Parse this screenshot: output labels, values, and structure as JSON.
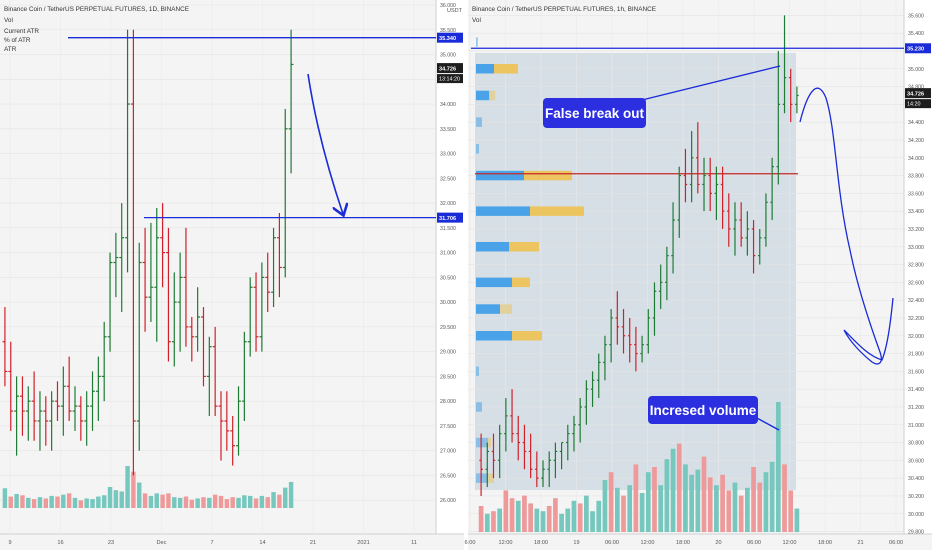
{
  "colors": {
    "bull": "#1e7b34",
    "bear": "#d0202a",
    "vol_bull": "#76c7bd",
    "vol_bear": "#ef9a9a",
    "annot_blue": "#1a2bd8",
    "vp_blue": "#4aa3e8",
    "vp_yellow": "#ecc560",
    "panel_bg": "#f4f4f4",
    "profile_bg": "#d6dfe6",
    "resistance_red": "#c62828"
  },
  "chart_data": [
    {
      "type": "candlestick",
      "title": "Binance Coin / TetherUS PERPETUAL FUTURES, 1D, BINANCE",
      "indicator_labels": [
        "Vol",
        "Current ATR",
        "% of ATR",
        "ATR"
      ],
      "currency": "USDT",
      "ylim": [
        25.6,
        36.0
      ],
      "y_ticks": [
        "26.000",
        "26.500",
        "27.000",
        "27.500",
        "28.000",
        "28.500",
        "29.000",
        "29.500",
        "30.000",
        "30.500",
        "31.000",
        "31.500",
        "32.000",
        "32.500",
        "33.000",
        "33.500",
        "34.000",
        "34.500",
        "35.000",
        "35.500",
        "36.000"
      ],
      "x_ticks": [
        "9",
        "16",
        "23",
        "Dec",
        "7",
        "14",
        "21",
        "2021",
        "11"
      ],
      "price_labels": [
        {
          "value": 35.34,
          "text": "35.340"
        },
        {
          "value": 34.726,
          "text": "34.726"
        },
        {
          "value": 31.706,
          "text": "31.706"
        }
      ],
      "countdown": "13:14:20",
      "horizontal_lines": [
        35.34,
        31.706
      ],
      "candles": [
        [
          29.2,
          29.9,
          28.3,
          28.6
        ],
        [
          28.6,
          29.2,
          27.4,
          27.8
        ],
        [
          27.8,
          28.5,
          26.9,
          28.1
        ],
        [
          28.1,
          28.5,
          27.3,
          27.8
        ],
        [
          27.8,
          28.3,
          27.2,
          28.0
        ],
        [
          28.0,
          28.6,
          27.2,
          27.6
        ],
        [
          27.6,
          28.2,
          27.0,
          27.8
        ],
        [
          27.8,
          28.1,
          27.1,
          27.6
        ],
        [
          27.6,
          28.2,
          27.0,
          28.0
        ],
        [
          28.0,
          28.4,
          27.6,
          27.9
        ],
        [
          27.9,
          28.7,
          27.3,
          28.3
        ],
        [
          28.3,
          28.9,
          27.6,
          27.8
        ],
        [
          27.8,
          28.3,
          27.4,
          27.9
        ],
        [
          27.9,
          28.1,
          27.2,
          27.6
        ],
        [
          27.6,
          28.2,
          27.1,
          27.9
        ],
        [
          27.9,
          28.6,
          27.4,
          28.2
        ],
        [
          28.2,
          28.9,
          27.6,
          28.5
        ],
        [
          28.5,
          29.6,
          28.0,
          29.3
        ],
        [
          29.3,
          31.0,
          29.0,
          30.8
        ],
        [
          30.8,
          31.4,
          30.1,
          30.9
        ],
        [
          30.9,
          32.0,
          29.8,
          31.3
        ],
        [
          31.3,
          35.5,
          30.6,
          34.0
        ],
        [
          34.0,
          35.5,
          26.5,
          27.6
        ],
        [
          27.6,
          31.2,
          27.0,
          30.8
        ],
        [
          30.8,
          31.5,
          29.4,
          30.1
        ],
        [
          30.1,
          31.6,
          29.6,
          30.3
        ],
        [
          30.3,
          31.9,
          29.2,
          31.3
        ],
        [
          31.3,
          32.0,
          30.3,
          31.0
        ],
        [
          31.0,
          31.5,
          28.8,
          29.2
        ],
        [
          29.2,
          30.6,
          28.7,
          30.0
        ],
        [
          30.0,
          31.0,
          29.0,
          30.5
        ],
        [
          30.5,
          31.5,
          29.1,
          29.5
        ],
        [
          29.5,
          29.7,
          28.8,
          29.3
        ],
        [
          29.3,
          30.3,
          29.0,
          29.7
        ],
        [
          29.7,
          29.9,
          28.3,
          28.5
        ],
        [
          28.5,
          29.3,
          27.7,
          29.1
        ],
        [
          29.1,
          29.5,
          27.7,
          27.9
        ],
        [
          27.9,
          28.2,
          26.8,
          27.6
        ],
        [
          27.6,
          28.2,
          27.0,
          27.4
        ],
        [
          27.4,
          27.7,
          26.7,
          27.1
        ],
        [
          27.1,
          28.3,
          26.9,
          28.0
        ],
        [
          28.0,
          29.4,
          27.6,
          29.2
        ],
        [
          29.2,
          30.5,
          28.9,
          30.3
        ],
        [
          30.3,
          30.6,
          29.0,
          29.3
        ],
        [
          29.3,
          30.8,
          29.0,
          30.5
        ],
        [
          30.5,
          31.0,
          29.8,
          30.2
        ],
        [
          30.2,
          31.5,
          29.9,
          31.3
        ],
        [
          31.3,
          31.8,
          30.1,
          30.7
        ],
        [
          30.7,
          33.9,
          30.5,
          33.5
        ],
        [
          33.5,
          35.5,
          32.6,
          34.8
        ]
      ],
      "volumes": [
        [
          3.1,
          "bull"
        ],
        [
          1.8,
          "bear"
        ],
        [
          2.2,
          "bull"
        ],
        [
          2.0,
          "bear"
        ],
        [
          1.6,
          "bull"
        ],
        [
          1.4,
          "bear"
        ],
        [
          1.7,
          "bull"
        ],
        [
          1.5,
          "bear"
        ],
        [
          1.9,
          "bull"
        ],
        [
          1.8,
          "bear"
        ],
        [
          2.1,
          "bull"
        ],
        [
          2.3,
          "bear"
        ],
        [
          1.6,
          "bull"
        ],
        [
          1.2,
          "bear"
        ],
        [
          1.5,
          "bull"
        ],
        [
          1.4,
          "bull"
        ],
        [
          1.8,
          "bull"
        ],
        [
          2.0,
          "bull"
        ],
        [
          3.3,
          "bull"
        ],
        [
          2.8,
          "bull"
        ],
        [
          2.6,
          "bull"
        ],
        [
          6.6,
          "bull"
        ],
        [
          5.7,
          "bear"
        ],
        [
          4.0,
          "bull"
        ],
        [
          2.3,
          "bear"
        ],
        [
          1.9,
          "bull"
        ],
        [
          2.3,
          "bull"
        ],
        [
          2.1,
          "bear"
        ],
        [
          2.3,
          "bear"
        ],
        [
          1.7,
          "bull"
        ],
        [
          1.6,
          "bull"
        ],
        [
          1.8,
          "bear"
        ],
        [
          1.3,
          "bear"
        ],
        [
          1.5,
          "bull"
        ],
        [
          1.7,
          "bear"
        ],
        [
          1.6,
          "bull"
        ],
        [
          2.1,
          "bear"
        ],
        [
          1.9,
          "bear"
        ],
        [
          1.4,
          "bear"
        ],
        [
          1.7,
          "bear"
        ],
        [
          1.6,
          "bull"
        ],
        [
          2.0,
          "bull"
        ],
        [
          1.9,
          "bull"
        ],
        [
          1.5,
          "bear"
        ],
        [
          1.9,
          "bull"
        ],
        [
          1.7,
          "bear"
        ],
        [
          2.5,
          "bull"
        ],
        [
          2.1,
          "bear"
        ],
        [
          3.2,
          "bull"
        ],
        [
          4.1,
          "bull"
        ]
      ]
    },
    {
      "type": "candlestick",
      "title": "Binance Coin / TetherUS PERPETUAL FUTURES, 1h, BINANCE",
      "indicator_labels": [
        "Vol"
      ],
      "ylim": [
        29.75,
        35.75
      ],
      "y_ticks": [
        "29.800",
        "30.000",
        "30.200",
        "30.400",
        "30.600",
        "30.800",
        "31.000",
        "31.200",
        "31.400",
        "31.600",
        "31.800",
        "32.000",
        "32.200",
        "32.400",
        "32.600",
        "32.800",
        "33.000",
        "33.200",
        "33.400",
        "33.600",
        "33.800",
        "34.000",
        "34.200",
        "34.400",
        "34.600",
        "34.800",
        "35.000",
        "35.200",
        "35.400",
        "35.600"
      ],
      "x_ticks": [
        "6:00",
        "12:00",
        "18:00",
        "19",
        "06:00",
        "12:00",
        "18:00",
        "20",
        "06:00",
        "12:00",
        "18:00",
        "21",
        "06:00"
      ],
      "price_labels": [
        {
          "value": 35.23,
          "text": "35.230"
        },
        {
          "value": 34.726,
          "text": "34.726"
        }
      ],
      "countdown": "14:20",
      "horizontal_lines": [
        35.23
      ],
      "point_of_control": 33.82,
      "annotations": [
        "False break out",
        "Incresed volume"
      ],
      "volume_profile": [
        {
          "price": 35.3,
          "up": 0.3,
          "down": 0.0
        },
        {
          "price": 35.0,
          "up": 3.0,
          "down": 4.0
        },
        {
          "price": 34.7,
          "up": 2.2,
          "down": 1.0
        },
        {
          "price": 34.4,
          "up": 1.0,
          "down": 0.0
        },
        {
          "price": 34.1,
          "up": 0.5,
          "down": 0.0
        },
        {
          "price": 33.8,
          "up": 8.0,
          "down": 8.0
        },
        {
          "price": 33.4,
          "up": 9.0,
          "down": 9.0
        },
        {
          "price": 33.0,
          "up": 5.5,
          "down": 5.0
        },
        {
          "price": 32.6,
          "up": 6.0,
          "down": 3.0
        },
        {
          "price": 32.3,
          "up": 4.0,
          "down": 2.0
        },
        {
          "price": 32.0,
          "up": 6.0,
          "down": 5.0
        },
        {
          "price": 31.6,
          "up": 0.5,
          "down": 0.0
        },
        {
          "price": 31.2,
          "up": 1.0,
          "down": 0.0
        },
        {
          "price": 30.8,
          "up": 2.0,
          "down": 0.5
        },
        {
          "price": 30.4,
          "up": 2.0,
          "down": 1.0
        }
      ],
      "candles": [
        [
          30.6,
          30.9,
          30.2,
          30.5
        ],
        [
          30.5,
          30.8,
          30.3,
          30.7
        ],
        [
          30.7,
          30.9,
          30.4,
          30.6
        ],
        [
          30.6,
          31.0,
          30.4,
          30.9
        ],
        [
          30.9,
          31.3,
          30.7,
          31.1
        ],
        [
          31.1,
          31.4,
          30.8,
          30.9
        ],
        [
          30.9,
          31.1,
          30.6,
          30.8
        ],
        [
          30.8,
          31.0,
          30.5,
          30.7
        ],
        [
          30.7,
          30.9,
          30.4,
          30.5
        ],
        [
          30.5,
          30.7,
          30.3,
          30.4
        ],
        [
          30.4,
          30.6,
          30.3,
          30.5
        ],
        [
          30.5,
          30.7,
          30.3,
          30.6
        ],
        [
          30.6,
          30.8,
          30.4,
          30.7
        ],
        [
          30.7,
          30.8,
          30.5,
          30.8
        ],
        [
          30.8,
          31.0,
          30.6,
          30.9
        ],
        [
          30.9,
          31.1,
          30.7,
          31.0
        ],
        [
          31.0,
          31.3,
          30.8,
          31.2
        ],
        [
          31.2,
          31.5,
          31.0,
          31.4
        ],
        [
          31.4,
          31.6,
          31.2,
          31.5
        ],
        [
          31.5,
          31.8,
          31.3,
          31.7
        ],
        [
          31.7,
          32.0,
          31.5,
          31.9
        ],
        [
          31.9,
          32.3,
          31.7,
          32.2
        ],
        [
          32.2,
          32.5,
          31.9,
          32.1
        ],
        [
          32.1,
          32.3,
          31.8,
          32.0
        ],
        [
          32.0,
          32.2,
          31.7,
          31.9
        ],
        [
          31.9,
          32.1,
          31.6,
          31.8
        ],
        [
          31.8,
          32.0,
          31.7,
          31.9
        ],
        [
          31.9,
          32.3,
          31.8,
          32.2
        ],
        [
          32.2,
          32.6,
          32.0,
          32.5
        ],
        [
          32.5,
          32.8,
          32.3,
          32.6
        ],
        [
          32.6,
          33.0,
          32.4,
          32.9
        ],
        [
          32.9,
          33.5,
          32.7,
          33.3
        ],
        [
          33.3,
          33.9,
          33.1,
          33.8
        ],
        [
          33.8,
          34.1,
          33.5,
          33.7
        ],
        [
          33.7,
          34.3,
          33.5,
          34.0
        ],
        [
          34.0,
          34.4,
          33.6,
          33.7
        ],
        [
          33.7,
          34.0,
          33.4,
          33.8
        ],
        [
          33.8,
          34.0,
          33.4,
          33.6
        ],
        [
          33.6,
          33.9,
          33.3,
          33.7
        ],
        [
          33.7,
          33.9,
          33.2,
          33.4
        ],
        [
          33.4,
          33.6,
          33.0,
          33.2
        ],
        [
          33.2,
          33.5,
          32.9,
          33.3
        ],
        [
          33.3,
          33.5,
          33.0,
          33.1
        ],
        [
          33.1,
          33.4,
          32.9,
          33.2
        ],
        [
          33.2,
          33.3,
          32.7,
          32.9
        ],
        [
          32.9,
          33.2,
          32.8,
          33.1
        ],
        [
          33.1,
          33.6,
          33.0,
          33.5
        ],
        [
          33.5,
          34.0,
          33.3,
          33.9
        ],
        [
          33.9,
          35.2,
          33.7,
          34.6
        ],
        [
          34.6,
          35.6,
          34.5,
          34.9
        ],
        [
          34.9,
          35.0,
          34.4,
          34.6
        ],
        [
          34.6,
          34.8,
          34.5,
          34.7
        ]
      ],
      "volumes": [
        [
          1.0,
          "bear"
        ],
        [
          0.7,
          "bull"
        ],
        [
          0.8,
          "bear"
        ],
        [
          0.9,
          "bull"
        ],
        [
          1.6,
          "bear"
        ],
        [
          1.3,
          "bear"
        ],
        [
          1.2,
          "bull"
        ],
        [
          1.4,
          "bear"
        ],
        [
          1.1,
          "bear"
        ],
        [
          0.9,
          "bull"
        ],
        [
          0.8,
          "bull"
        ],
        [
          1.0,
          "bear"
        ],
        [
          1.3,
          "bear"
        ],
        [
          0.7,
          "bull"
        ],
        [
          0.9,
          "bull"
        ],
        [
          1.2,
          "bull"
        ],
        [
          1.1,
          "bear"
        ],
        [
          1.4,
          "bull"
        ],
        [
          0.8,
          "bull"
        ],
        [
          1.2,
          "bull"
        ],
        [
          2.0,
          "bull"
        ],
        [
          2.3,
          "bear"
        ],
        [
          1.7,
          "bull"
        ],
        [
          1.4,
          "bear"
        ],
        [
          1.8,
          "bull"
        ],
        [
          2.6,
          "bear"
        ],
        [
          1.5,
          "bull"
        ],
        [
          2.3,
          "bull"
        ],
        [
          2.5,
          "bear"
        ],
        [
          1.8,
          "bull"
        ],
        [
          2.8,
          "bull"
        ],
        [
          3.2,
          "bull"
        ],
        [
          3.4,
          "bear"
        ],
        [
          2.6,
          "bull"
        ],
        [
          2.2,
          "bull"
        ],
        [
          2.4,
          "bull"
        ],
        [
          2.9,
          "bear"
        ],
        [
          2.1,
          "bear"
        ],
        [
          1.8,
          "bull"
        ],
        [
          2.2,
          "bear"
        ],
        [
          1.6,
          "bear"
        ],
        [
          1.9,
          "bull"
        ],
        [
          1.4,
          "bear"
        ],
        [
          1.7,
          "bull"
        ],
        [
          2.5,
          "bear"
        ],
        [
          1.9,
          "bear"
        ],
        [
          2.3,
          "bull"
        ],
        [
          2.7,
          "bull"
        ],
        [
          5.0,
          "bull"
        ],
        [
          2.6,
          "bear"
        ],
        [
          1.6,
          "bear"
        ],
        [
          0.9,
          "bull"
        ]
      ]
    }
  ]
}
